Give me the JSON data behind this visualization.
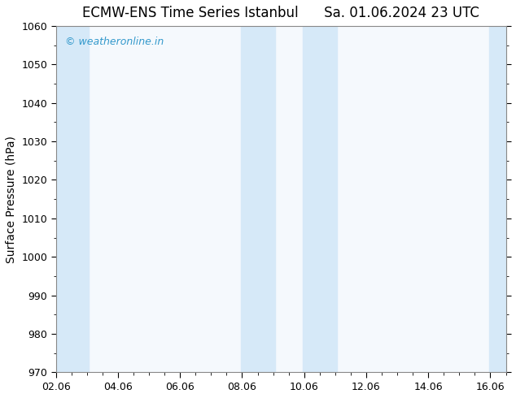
{
  "title": "ECMW-ENS Time Series Istanbul      Sa. 01.06.2024 23 UTC",
  "ylabel": "Surface Pressure (hPa)",
  "ylim": [
    970,
    1060
  ],
  "yticks": [
    970,
    980,
    990,
    1000,
    1010,
    1020,
    1030,
    1040,
    1050,
    1060
  ],
  "xlim": [
    0,
    14.5
  ],
  "xtick_labels": [
    "02.06",
    "04.06",
    "06.06",
    "08.06",
    "10.06",
    "12.06",
    "14.06",
    "16.06"
  ],
  "xtick_positions": [
    0,
    2,
    4,
    6,
    8,
    10,
    12,
    14
  ],
  "background_color": "#ffffff",
  "plot_bg_color": "#f5f9fd",
  "shaded_bands": [
    {
      "xmin": -0.05,
      "xmax": 1.05
    },
    {
      "xmin": 5.95,
      "xmax": 7.05
    },
    {
      "xmin": 7.95,
      "xmax": 9.05
    },
    {
      "xmin": 13.95,
      "xmax": 14.55
    }
  ],
  "shaded_color": "#d6e9f8",
  "watermark_text": "© weatheronline.in",
  "watermark_color": "#3399cc",
  "title_fontsize": 12,
  "axis_label_fontsize": 10,
  "tick_fontsize": 9,
  "watermark_fontsize": 9,
  "fig_width": 6.34,
  "fig_height": 4.9,
  "dpi": 100
}
